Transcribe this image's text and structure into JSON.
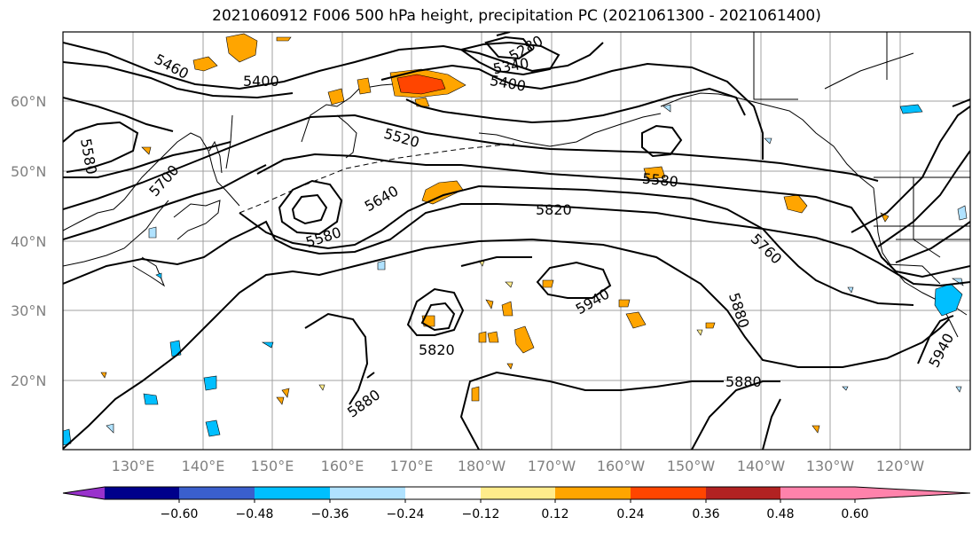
{
  "title": "2021060912 F006 500 hPa height, precipitation PC (2021061300 - 2021061400)",
  "lat_labels": [
    "60°N",
    "50°N",
    "40°N",
    "30°N",
    "20°N"
  ],
  "lon_labels": [
    "130°E",
    "140°E",
    "150°E",
    "160°E",
    "170°E",
    "180°W",
    "170°W",
    "160°W",
    "150°W",
    "140°W",
    "130°W",
    "120°W"
  ],
  "contour_labels": [
    "5460",
    "5400",
    "5340",
    "5400",
    "5580",
    "5700",
    "5520",
    "5580",
    "5640",
    "5580",
    "5820",
    "5760",
    "5940",
    "5880",
    "5820",
    "5880",
    "5880",
    "5940",
    "5280"
  ],
  "colorbar": {
    "ticks": [
      "−0.60",
      "−0.48",
      "−0.36",
      "−0.24",
      "−0.12",
      "0.12",
      "0.24",
      "0.36",
      "0.48",
      "0.60"
    ],
    "colors": [
      "#9932CC",
      "#00008B",
      "#3A5FCD",
      "#00BFFF",
      "#B0E2FF",
      "#FFFFFF",
      "#FFEC8B",
      "#FFA500",
      "#FF4500",
      "#B22222",
      "#FF82AB"
    ]
  }
}
